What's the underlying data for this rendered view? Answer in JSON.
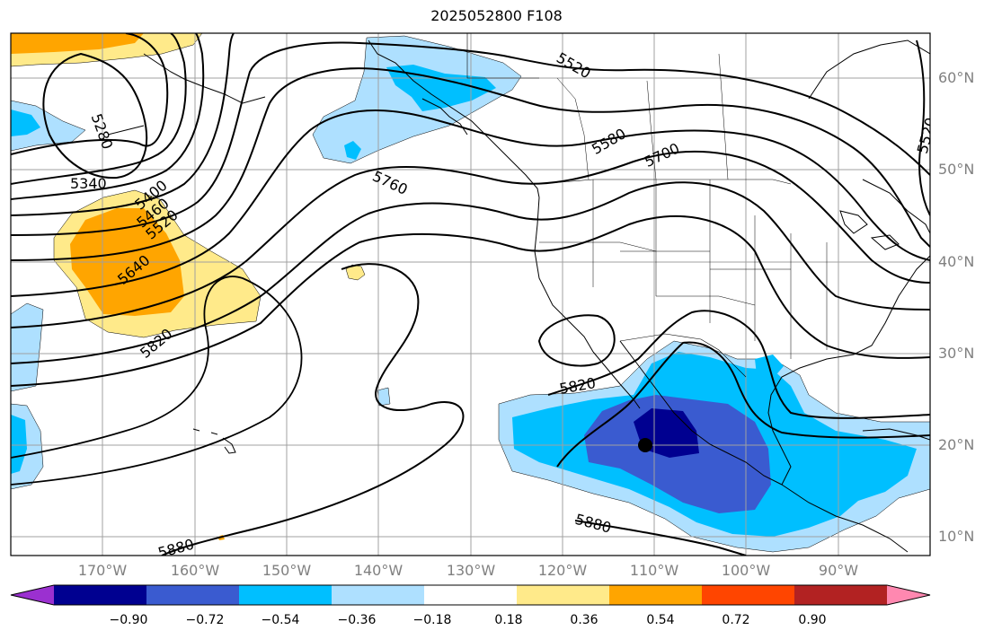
{
  "title": "2025052800 F108",
  "longitude_labels": [
    "170°W",
    "160°W",
    "150°W",
    "140°W",
    "130°W",
    "120°W",
    "110°W",
    "100°W",
    "90°W"
  ],
  "latitude_labels": [
    "60°N",
    "50°N",
    "40°N",
    "30°N",
    "20°N",
    "10°N"
  ],
  "contour_labels": [
    "5280",
    "5340",
    "5400",
    "5460",
    "5520",
    "5640",
    "5820",
    "5520",
    "5580",
    "5700",
    "5760",
    "5820",
    "5880",
    "5880",
    "5520"
  ],
  "colorbar": {
    "tick_labels": [
      "−0.90",
      "−0.72",
      "−0.54",
      "−0.36",
      "−0.18",
      "0.18",
      "0.36",
      "0.54",
      "0.72",
      "0.90"
    ],
    "colors": [
      "#9b30d0",
      "#000090",
      "#3a5bd0",
      "#00bfff",
      "#aee0ff",
      "#ffffff",
      "#ffea8a",
      "#ffa500",
      "#ff4500",
      "#b22222",
      "#ff88b0"
    ]
  },
  "colors": {
    "grid": "#a0a0a0",
    "coast": "#000000",
    "contour": "#000000",
    "axis_label": "#808080"
  }
}
